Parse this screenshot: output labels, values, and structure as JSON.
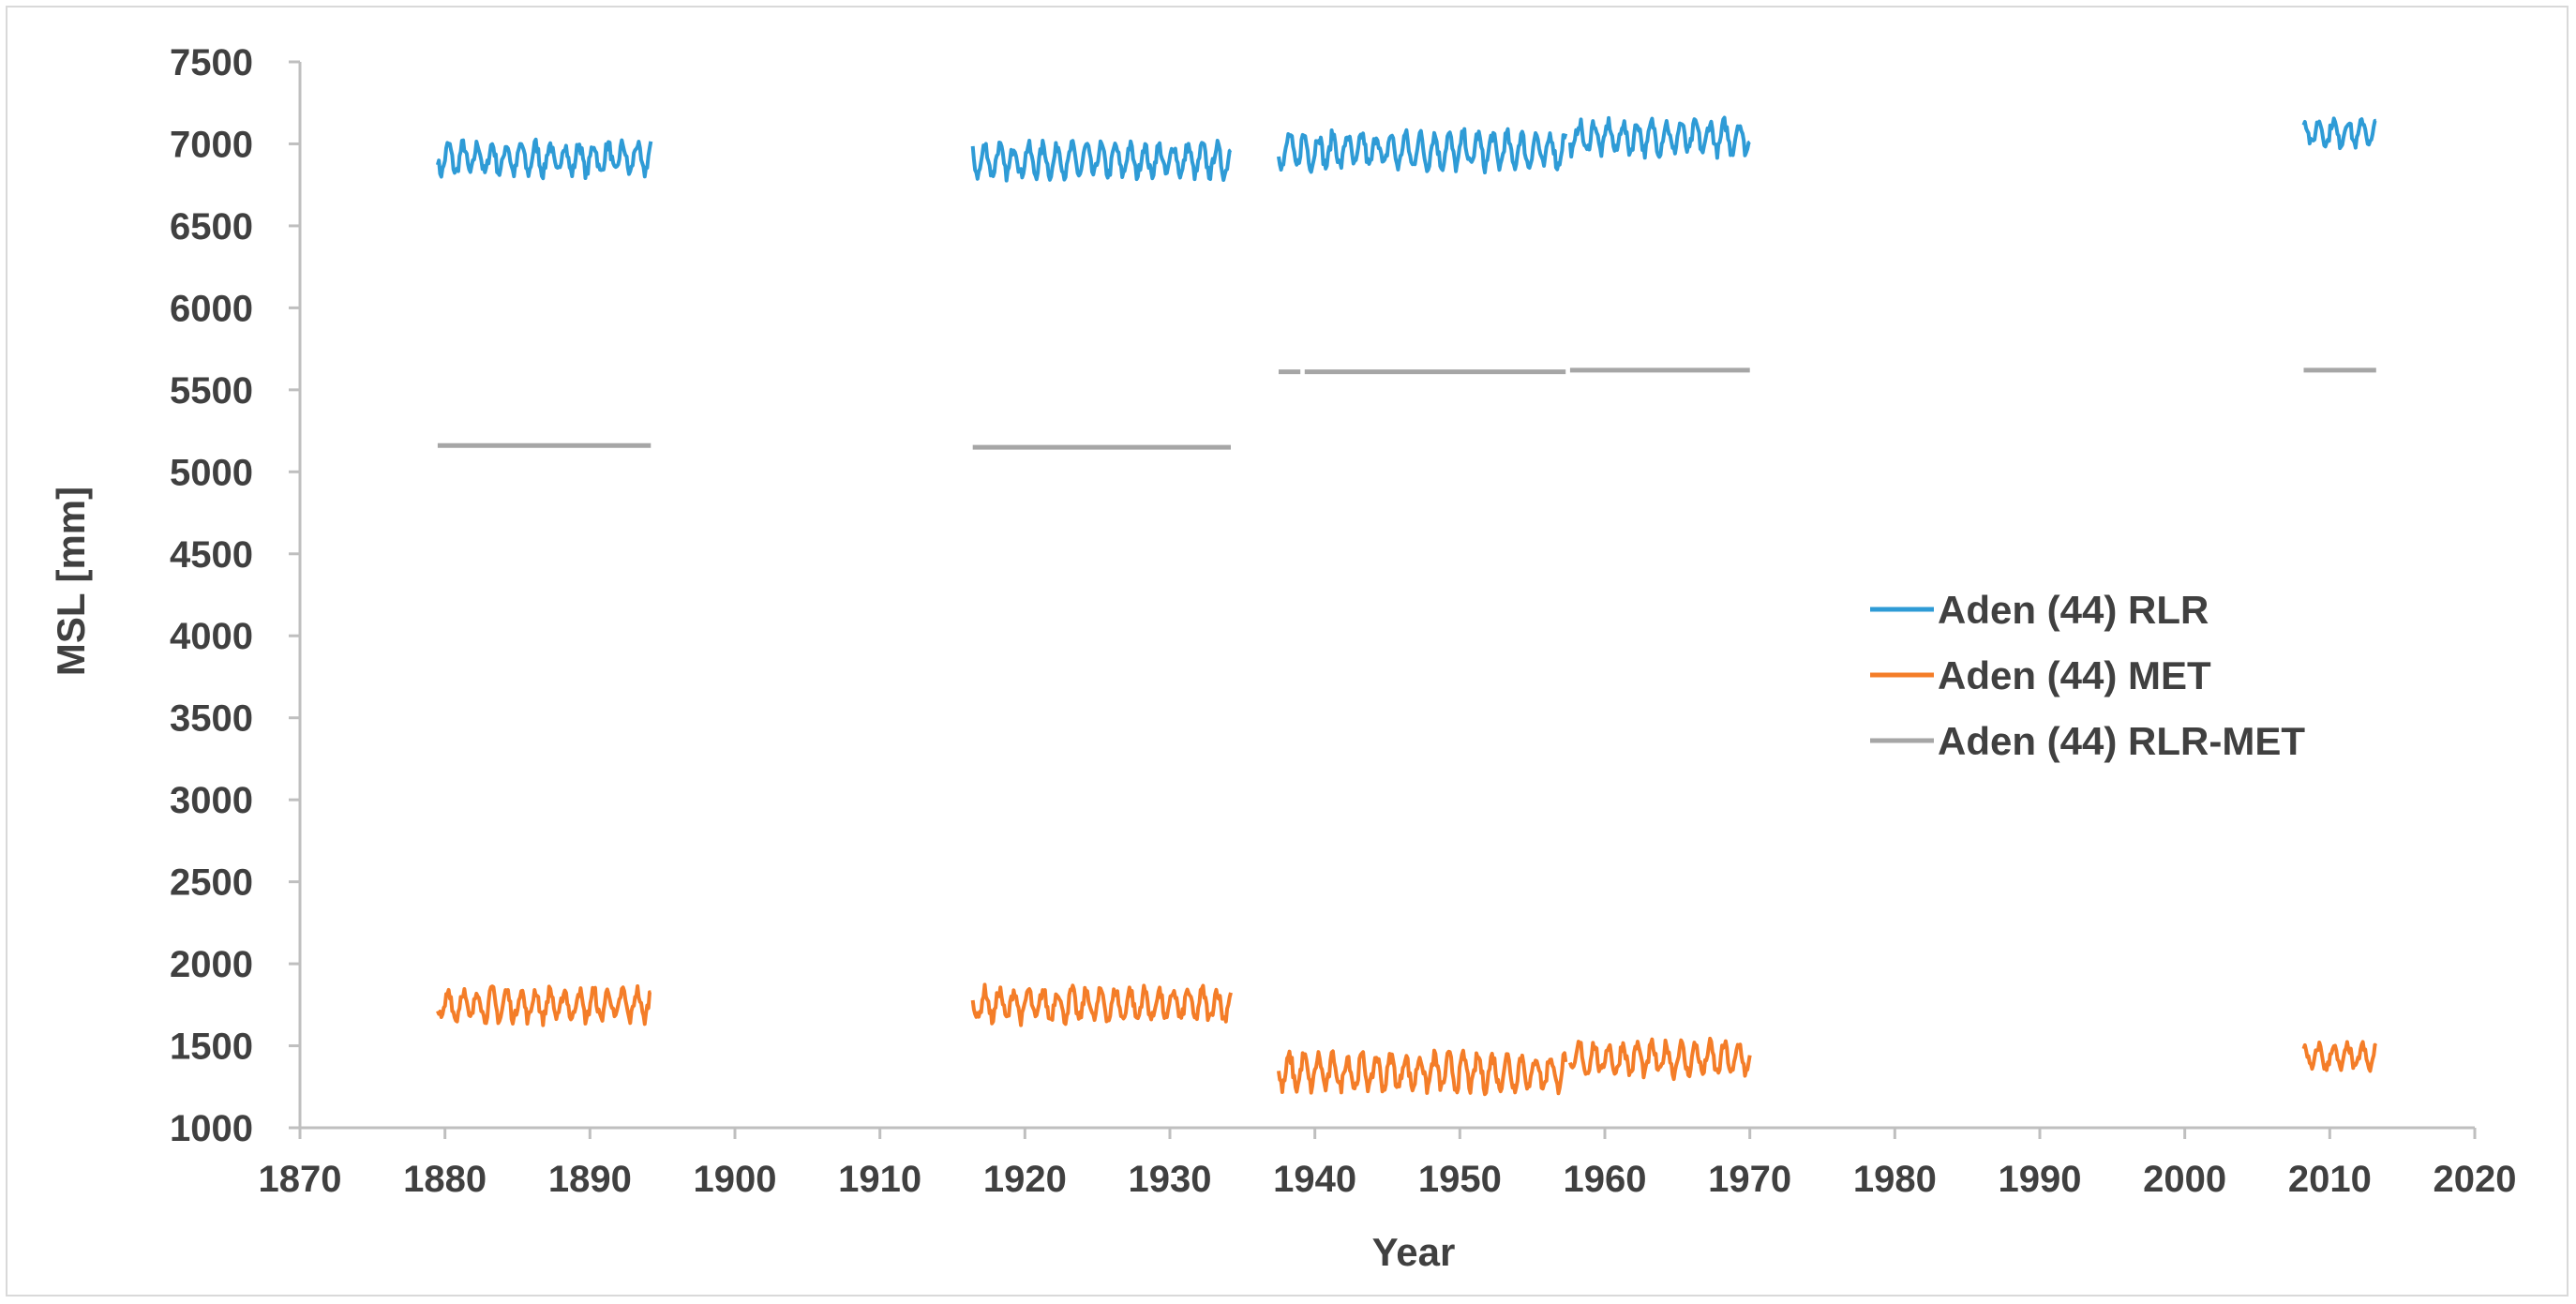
{
  "chart_data": {
    "type": "line",
    "title": "",
    "xlabel": "Year",
    "ylabel": "MSL [mm]",
    "xlim": [
      1870,
      2020
    ],
    "ylim": [
      1000,
      7500
    ],
    "xticks": [
      1870,
      1880,
      1890,
      1900,
      1910,
      1920,
      1930,
      1940,
      1950,
      1960,
      1970,
      1980,
      1990,
      2000,
      2010,
      2020
    ],
    "yticks": [
      1000,
      1500,
      2000,
      2500,
      3000,
      3500,
      4000,
      4500,
      5000,
      5500,
      6000,
      6500,
      7000,
      7500
    ],
    "grid": false,
    "legend_position": "right",
    "colors": {
      "rlr": "#2e9bd6",
      "met": "#f47d28",
      "diff": "#a6a6a6",
      "axis": "#bfbfbf"
    },
    "series": [
      {
        "name": "Aden (44) RLR",
        "color": "#2e9bd6",
        "segments": [
          {
            "start": 1879.5,
            "end": 1894.2,
            "mean": 6910,
            "amplitude": 110
          },
          {
            "start": 1916.4,
            "end": 1934.2,
            "mean": 6900,
            "amplitude": 110
          },
          {
            "start": 1937.5,
            "end": 1957.3,
            "mean": 6960,
            "amplitude": 120
          },
          {
            "start": 1957.6,
            "end": 1970.0,
            "mean": 7040,
            "amplitude": 110
          },
          {
            "start": 2008.2,
            "end": 2013.2,
            "mean": 7070,
            "amplitude": 90
          }
        ]
      },
      {
        "name": "Aden (44) MET",
        "color": "#f47d28",
        "segments": [
          {
            "start": 1879.5,
            "end": 1894.2,
            "mean": 1750,
            "amplitude": 110
          },
          {
            "start": 1916.4,
            "end": 1934.2,
            "mean": 1750,
            "amplitude": 110
          },
          {
            "start": 1937.5,
            "end": 1957.3,
            "mean": 1340,
            "amplitude": 120
          },
          {
            "start": 1957.6,
            "end": 1970.0,
            "mean": 1420,
            "amplitude": 110
          },
          {
            "start": 2008.2,
            "end": 2013.2,
            "mean": 1430,
            "amplitude": 90
          }
        ]
      },
      {
        "name": "Aden (44) RLR-MET",
        "color": "#a6a6a6",
        "segments": [
          {
            "start": 1879.5,
            "end": 1894.2,
            "value": 5160
          },
          {
            "start": 1916.4,
            "end": 1934.2,
            "value": 5150
          },
          {
            "start": 1937.5,
            "end": 1939.0,
            "value": 5610
          },
          {
            "start": 1939.3,
            "end": 1957.3,
            "value": 5610
          },
          {
            "start": 1957.6,
            "end": 1970.0,
            "value": 5620
          },
          {
            "start": 2008.2,
            "end": 2013.2,
            "value": 5620
          }
        ]
      }
    ]
  }
}
